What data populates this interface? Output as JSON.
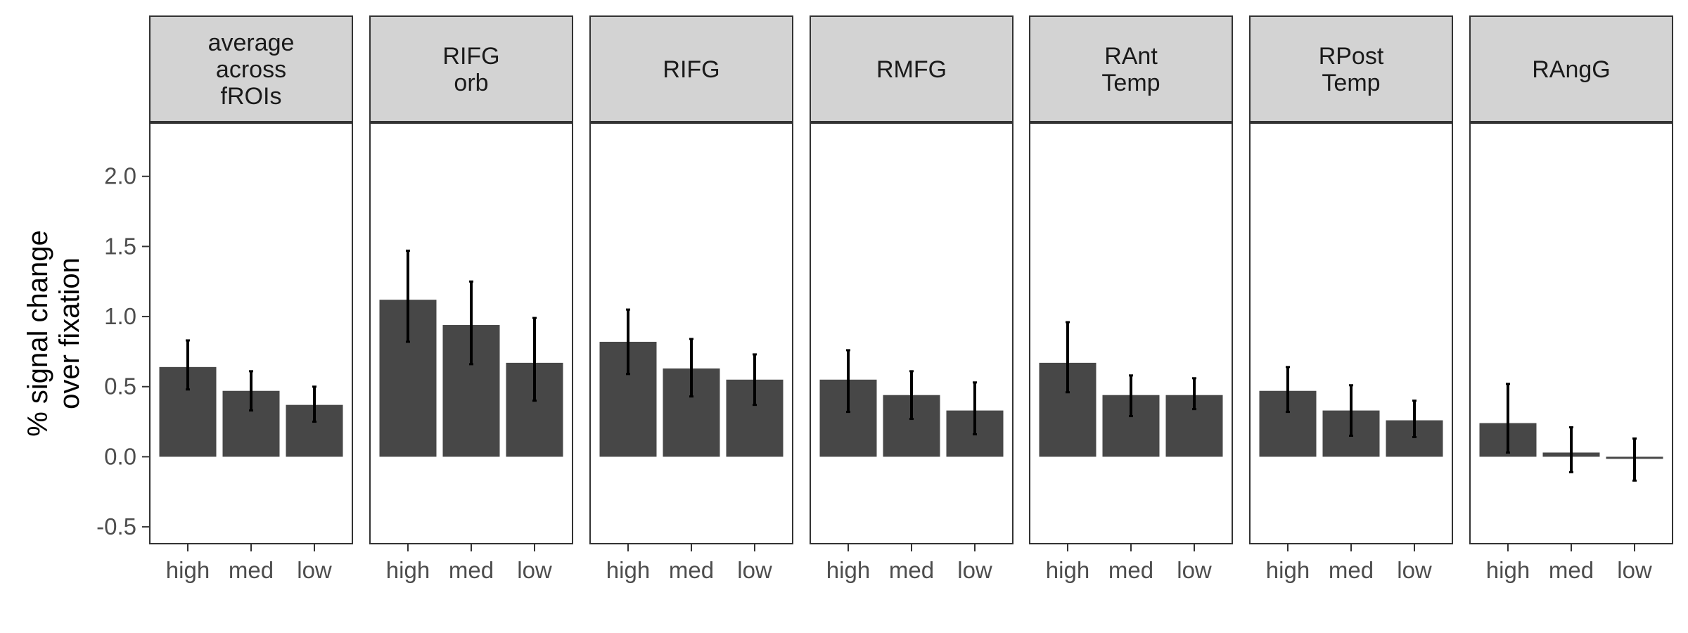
{
  "chart_data": {
    "type": "bar",
    "ylabel": "% signal change\nover fixation",
    "ylim": [
      -0.62,
      2.38
    ],
    "yticks": [
      -0.5,
      0.0,
      0.5,
      1.0,
      1.5,
      2.0
    ],
    "ytick_labels": [
      "-0.5",
      "0.0",
      "0.5",
      "1.0",
      "1.5",
      "2.0"
    ],
    "categories": [
      "high",
      "med",
      "low"
    ],
    "colors": {
      "bar": "#474747",
      "strip": "#d3d3d3",
      "errorbar": "#000000"
    },
    "panels": [
      {
        "title": "average\nacross\nfROIs",
        "values": [
          0.64,
          0.47,
          0.37
        ],
        "error_low": [
          0.48,
          0.33,
          0.25
        ],
        "error_high": [
          0.83,
          0.61,
          0.5
        ]
      },
      {
        "title": "RIFG\norb",
        "values": [
          1.12,
          0.94,
          0.67
        ],
        "error_low": [
          0.82,
          0.66,
          0.4
        ],
        "error_high": [
          1.47,
          1.25,
          0.99
        ]
      },
      {
        "title": "RIFG",
        "values": [
          0.82,
          0.63,
          0.55
        ],
        "error_low": [
          0.59,
          0.43,
          0.37
        ],
        "error_high": [
          1.05,
          0.84,
          0.73
        ]
      },
      {
        "title": "RMFG",
        "values": [
          0.55,
          0.44,
          0.33
        ],
        "error_low": [
          0.32,
          0.27,
          0.16
        ],
        "error_high": [
          0.76,
          0.61,
          0.53
        ]
      },
      {
        "title": "RAnt\nTemp",
        "values": [
          0.67,
          0.44,
          0.44
        ],
        "error_low": [
          0.46,
          0.29,
          0.34
        ],
        "error_high": [
          0.96,
          0.58,
          0.56
        ]
      },
      {
        "title": "RPost\nTemp",
        "values": [
          0.47,
          0.33,
          0.26
        ],
        "error_low": [
          0.32,
          0.15,
          0.14
        ],
        "error_high": [
          0.64,
          0.51,
          0.4
        ]
      },
      {
        "title": "RAngG",
        "values": [
          0.24,
          0.03,
          -0.01
        ],
        "error_low": [
          0.03,
          -0.11,
          -0.17
        ],
        "error_high": [
          0.52,
          0.21,
          0.13
        ]
      }
    ]
  }
}
